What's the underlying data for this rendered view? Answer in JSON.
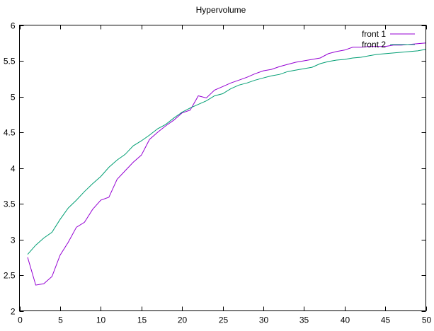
{
  "chart_data": {
    "type": "line",
    "title": "Hypervolume",
    "xlabel": "",
    "ylabel": "",
    "xlim": [
      0,
      50
    ],
    "ylim": [
      2,
      6
    ],
    "xticks": [
      0,
      5,
      10,
      15,
      20,
      25,
      30,
      35,
      40,
      45,
      50
    ],
    "yticks": [
      2,
      2.5,
      3,
      3.5,
      4,
      4.5,
      5,
      5.5,
      6
    ],
    "xtick_labels": [
      "0",
      "5",
      "10",
      "15",
      "20",
      "25",
      "30",
      "35",
      "40",
      "45",
      "50"
    ],
    "ytick_labels": [
      "2",
      "2.5",
      "3",
      "3.5",
      "4",
      "4.5",
      "5",
      "5.5",
      "6"
    ],
    "grid": false,
    "legend": "top-right",
    "series": [
      {
        "name": "front 1",
        "color": "#9400d3",
        "x": [
          1,
          2,
          3,
          4,
          5,
          6,
          7,
          8,
          9,
          10,
          11,
          12,
          13,
          14,
          15,
          16,
          17,
          18,
          19,
          20,
          21,
          22,
          23,
          24,
          25,
          26,
          27,
          28,
          29,
          30,
          31,
          32,
          33,
          34,
          35,
          36,
          37,
          38,
          39,
          40,
          41,
          42,
          43,
          44,
          45,
          46,
          47,
          48,
          49,
          50
        ],
        "y": [
          2.75,
          2.36,
          2.38,
          2.48,
          2.78,
          2.96,
          3.17,
          3.24,
          3.42,
          3.55,
          3.59,
          3.84,
          3.96,
          4.08,
          4.18,
          4.4,
          4.5,
          4.59,
          4.67,
          4.77,
          4.81,
          5.01,
          4.98,
          5.09,
          5.14,
          5.19,
          5.23,
          5.27,
          5.32,
          5.36,
          5.38,
          5.42,
          5.45,
          5.48,
          5.5,
          5.52,
          5.54,
          5.6,
          5.63,
          5.65,
          5.69,
          5.69,
          5.7,
          5.7,
          5.7,
          5.72,
          5.72,
          5.73,
          5.74,
          5.75
        ]
      },
      {
        "name": "front 2",
        "color": "#009e73",
        "x": [
          1,
          2,
          3,
          4,
          5,
          6,
          7,
          8,
          9,
          10,
          11,
          12,
          13,
          14,
          15,
          16,
          17,
          18,
          19,
          20,
          21,
          22,
          23,
          24,
          25,
          26,
          27,
          28,
          29,
          30,
          31,
          32,
          33,
          34,
          35,
          36,
          37,
          38,
          39,
          40,
          41,
          42,
          43,
          44,
          45,
          46,
          47,
          48,
          49,
          50
        ],
        "y": [
          2.79,
          2.92,
          3.02,
          3.1,
          3.28,
          3.44,
          3.55,
          3.67,
          3.78,
          3.88,
          4.01,
          4.11,
          4.19,
          4.31,
          4.38,
          4.46,
          4.55,
          4.61,
          4.7,
          4.78,
          4.84,
          4.89,
          4.94,
          5.01,
          5.04,
          5.11,
          5.16,
          5.19,
          5.23,
          5.26,
          5.29,
          5.31,
          5.35,
          5.37,
          5.39,
          5.41,
          5.46,
          5.49,
          5.51,
          5.52,
          5.54,
          5.55,
          5.57,
          5.59,
          5.6,
          5.61,
          5.62,
          5.63,
          5.64,
          5.66
        ]
      }
    ]
  }
}
